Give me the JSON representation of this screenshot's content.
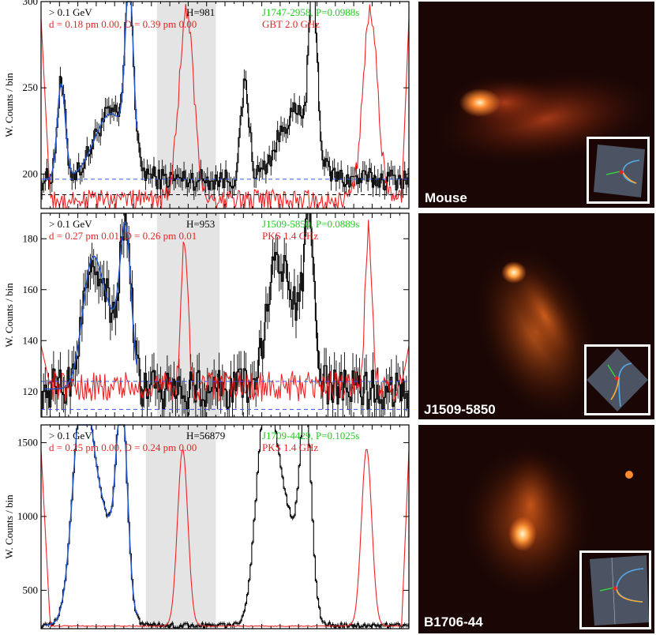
{
  "chart_data": [
    {
      "type": "line",
      "panel": "pulse-profile",
      "ylabel": "W. Counts / bin",
      "ylim": [
        180,
        300
      ],
      "yticks": [
        200,
        250,
        300
      ],
      "xlim": [
        0,
        2
      ],
      "shaded_phase": [
        0.63,
        0.95
      ],
      "annotations": {
        "energy": "> 0.1 GeV",
        "h_stat": "H=981",
        "pulsar": "J1747-2958, P=0.0988s",
        "separation": "d = 0.18 pm 0.00,  D = 0.39 pm 0.00",
        "radio": "GBT 2.0 GHz"
      },
      "baselines": {
        "background": 188,
        "band_high": 197,
        "band_low": 180
      },
      "series": [
        {
          "name": "gamma-ray counts",
          "color": "#000000",
          "kind": "histogram"
        },
        {
          "name": "model fit",
          "color": "#2255cc",
          "kind": "fit"
        },
        {
          "name": "radio profile",
          "color": "#ee2222",
          "kind": "radio"
        }
      ],
      "model": {
        "base": 197,
        "peak1": {
          "pos": 0.11,
          "h": 55,
          "w": 0.022
        },
        "bridge": {
          "pos": 0.38,
          "h": 38,
          "w": 0.09
        },
        "peak2": {
          "pos": 0.48,
          "h": 95,
          "w": 0.022
        },
        "noise": 4
      },
      "radio_model": {
        "base": 185,
        "peak": {
          "pos": 0.79,
          "h": 108,
          "w": 0.04
        },
        "noise": 6,
        "start_high": 290
      }
    },
    {
      "type": "line",
      "panel": "pulse-profile",
      "ylabel": "W. Counts / bin",
      "ylim": [
        110,
        190
      ],
      "yticks": [
        120,
        140,
        160,
        180
      ],
      "xlim": [
        0,
        2
      ],
      "shaded_phase": [
        0.63,
        0.97
      ],
      "annotations": {
        "energy": "> 0.1 GeV",
        "h_stat": "H=953",
        "pulsar": "J1509-5850, P=0.0889s",
        "separation": "d = 0.27 pm 0.01,  D = 0.26 pm 0.01",
        "radio": "PKS 1.4 GHz"
      },
      "baselines": {
        "background": null,
        "band_high": 124,
        "band_low": 113
      },
      "series": [
        {
          "name": "gamma-ray counts",
          "color": "#000000",
          "kind": "histogram"
        },
        {
          "name": "model fit",
          "color": "#2255cc",
          "kind": "fit"
        },
        {
          "name": "radio profile",
          "color": "#ee2222",
          "kind": "radio"
        }
      ],
      "model": {
        "base": 121,
        "peak1": {
          "pos": 0.27,
          "h": 38,
          "w": 0.05
        },
        "bridge": {
          "pos": 0.36,
          "h": 28,
          "w": 0.07
        },
        "peak2": {
          "pos": 0.46,
          "h": 55,
          "w": 0.03
        },
        "noise": 5
      },
      "radio_model": {
        "base": 122,
        "peak": {
          "pos": 0.78,
          "h": 60,
          "w": 0.018
        },
        "noise": 6,
        "start_high": 138
      }
    },
    {
      "type": "line",
      "panel": "pulse-profile",
      "ylabel": "W. Counts / bin",
      "ylim": [
        240,
        1620
      ],
      "yticks": [
        500,
        1000,
        1500
      ],
      "xlim": [
        0,
        2
      ],
      "shaded_phase": [
        0.57,
        0.95
      ],
      "annotations": {
        "energy": "> 0.1 GeV",
        "h_stat": "H=56879",
        "pulsar": "J1709-4429, P=0.1025s",
        "separation": "d = 0.25 pm 0.00,  D = 0.24 pm 0.00",
        "radio": "PKS 1.4 GHz"
      },
      "baselines": {
        "background": null,
        "band_high": null,
        "band_low": null
      },
      "series": [
        {
          "name": "gamma-ray counts",
          "color": "#000000",
          "kind": "histogram"
        },
        {
          "name": "model fit",
          "color": "#2255cc",
          "kind": "fit"
        },
        {
          "name": "radio profile",
          "color": "#ee2222",
          "kind": "radio"
        }
      ],
      "model": {
        "base": 262,
        "peak1": {
          "pos": 0.22,
          "h": 1250,
          "w": 0.05
        },
        "bridge": {
          "pos": 0.32,
          "h": 780,
          "w": 0.08
        },
        "peak2": {
          "pos": 0.44,
          "h": 1300,
          "w": 0.03
        },
        "noise": 10
      },
      "radio_model": {
        "base": 258,
        "peak": {
          "pos": 0.77,
          "h": 1200,
          "w": 0.028
        },
        "noise": 3,
        "start_high": 1450
      }
    }
  ],
  "images": [
    {
      "label": "Mouse",
      "glow": "#ff7a2a"
    },
    {
      "label": "J1509-5850",
      "glow": "#ff8a30"
    },
    {
      "label": "B1706-44",
      "glow": "#ffa040"
    }
  ],
  "colors": {
    "data": "#000000",
    "fit": "#2255cc",
    "radio": "#ee2222",
    "pulsar_label": "#22cc22",
    "shade": "#e4e4e4"
  }
}
